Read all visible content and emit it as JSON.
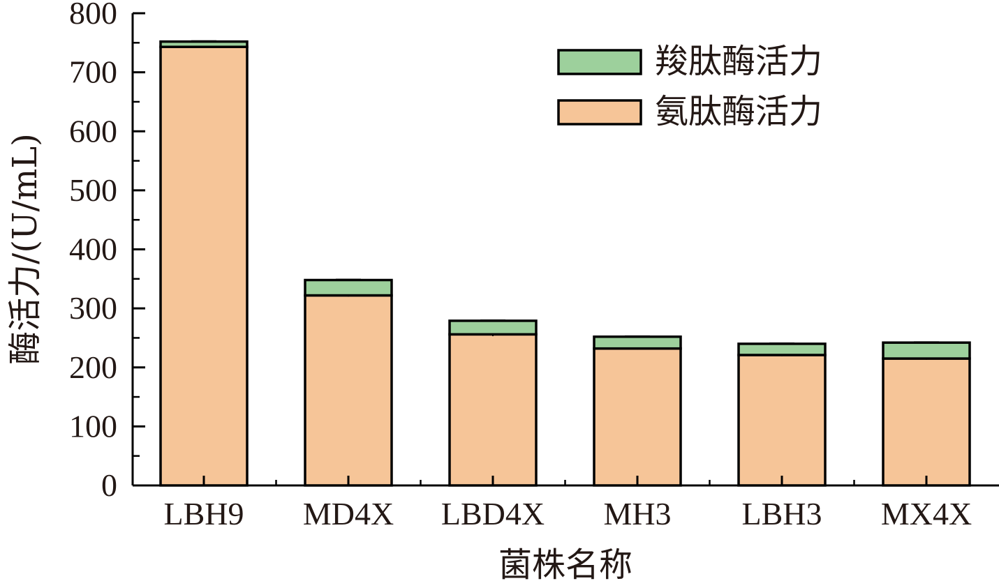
{
  "chart_data": {
    "type": "bar",
    "stacked": true,
    "title": "",
    "xlabel": "菌株名称",
    "ylabel": "酶活力/(U/mL)",
    "categories": [
      "LBH9",
      "MD4X",
      "LBD4X",
      "MH3",
      "LBH3",
      "MX4X"
    ],
    "series": [
      {
        "name": "氨肽酶活力",
        "color": "#f6c598",
        "values": [
          743,
          322,
          256,
          232,
          221,
          215
        ]
      },
      {
        "name": "羧肽酶活力",
        "color": "#9dd09c",
        "values": [
          9,
          26,
          23,
          20,
          19,
          27
        ]
      }
    ],
    "error": {
      "氨肽酶活力": [
        2,
        2,
        3,
        2,
        2,
        2
      ],
      "羧肽酶活力": [
        1,
        1,
        1,
        1,
        1,
        1
      ]
    },
    "ylim": [
      0,
      800
    ],
    "yticks": [
      "0",
      "100",
      "200",
      "300",
      "400",
      "500",
      "600",
      "700",
      "800"
    ],
    "grid": false,
    "legend_position": "top-right",
    "legend_order": [
      "羧肽酶活力",
      "氨肽酶活力"
    ]
  }
}
